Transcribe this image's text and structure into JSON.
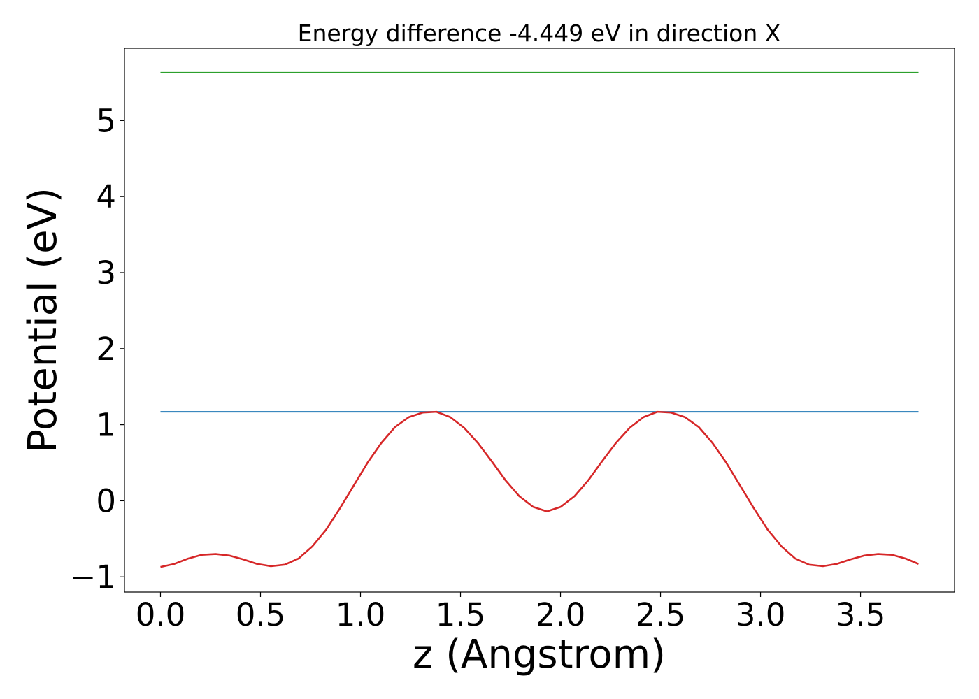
{
  "chart_data": {
    "type": "line",
    "title": "Energy difference -4.449 eV in direction X",
    "xlabel": "z (Angstrom)",
    "ylabel": "Potential (eV)",
    "xlim": [
      -0.18,
      3.97
    ],
    "ylim": [
      -1.2,
      5.95
    ],
    "xticks": [
      0.0,
      0.5,
      1.0,
      1.5,
      2.0,
      2.5,
      3.0,
      3.5
    ],
    "xtick_labels": [
      "0.0",
      "0.5",
      "1.0",
      "1.5",
      "2.0",
      "2.5",
      "3.0",
      "3.5"
    ],
    "yticks": [
      -1,
      0,
      1,
      2,
      3,
      4,
      5
    ],
    "ytick_labels": [
      "−1",
      "0",
      "1",
      "2",
      "3",
      "4",
      "5"
    ],
    "grid": false,
    "series": [
      {
        "color": "#2ca02c",
        "x": [
          0.0,
          3.79
        ],
        "y": [
          5.63,
          5.63
        ]
      },
      {
        "color": "#1f77b4",
        "x": [
          0.0,
          3.79
        ],
        "y": [
          1.17,
          1.17
        ]
      },
      {
        "color": "#d62728",
        "x": [
          0.0,
          0.069,
          0.138,
          0.207,
          0.276,
          0.345,
          0.414,
          0.483,
          0.552,
          0.621,
          0.69,
          0.759,
          0.828,
          0.897,
          0.966,
          1.035,
          1.104,
          1.173,
          1.242,
          1.311,
          1.38,
          1.449,
          1.518,
          1.587,
          1.656,
          1.725,
          1.794,
          1.863,
          1.932,
          2.001,
          2.07,
          2.139,
          2.208,
          2.277,
          2.346,
          2.415,
          2.484,
          2.553,
          2.622,
          2.691,
          2.76,
          2.829,
          2.898,
          2.967,
          3.036,
          3.105,
          3.174,
          3.243,
          3.312,
          3.381,
          3.45,
          3.519,
          3.588,
          3.657,
          3.726,
          3.79
        ],
        "y": [
          -0.87,
          -0.83,
          -0.76,
          -0.71,
          -0.7,
          -0.72,
          -0.77,
          -0.83,
          -0.86,
          -0.84,
          -0.76,
          -0.6,
          -0.38,
          -0.1,
          0.2,
          0.5,
          0.76,
          0.97,
          1.1,
          1.16,
          1.17,
          1.1,
          0.96,
          0.76,
          0.52,
          0.27,
          0.06,
          -0.08,
          -0.14,
          -0.08,
          0.06,
          0.27,
          0.52,
          0.76,
          0.96,
          1.1,
          1.17,
          1.16,
          1.1,
          0.97,
          0.76,
          0.5,
          0.2,
          -0.1,
          -0.38,
          -0.6,
          -0.76,
          -0.84,
          -0.86,
          -0.83,
          -0.77,
          -0.72,
          -0.7,
          -0.71,
          -0.76,
          -0.83
        ]
      }
    ]
  }
}
